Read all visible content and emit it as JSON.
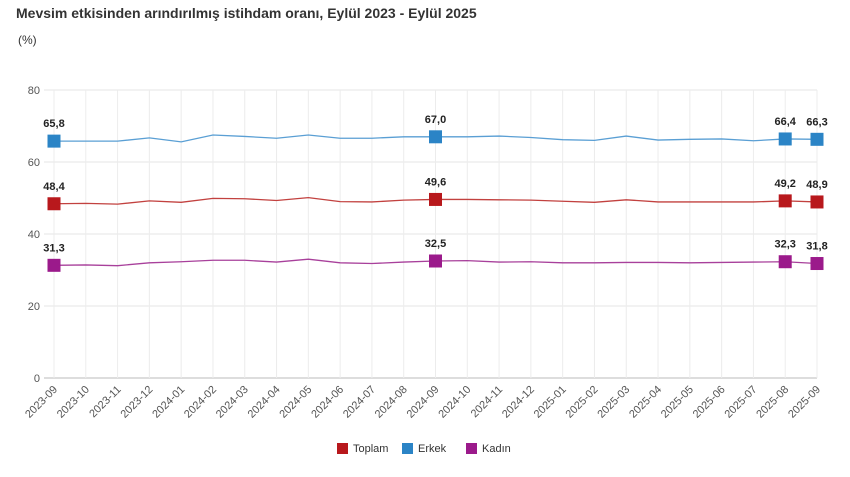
{
  "chart_data": {
    "type": "line",
    "title": "Mevsim etkisinden arındırılmış istihdam oranı, Eylül 2023 - Eylül 2025",
    "ylabel": "(%)",
    "xlabel": "",
    "ylim": [
      0,
      80
    ],
    "yticks": [
      0,
      20,
      40,
      60,
      80
    ],
    "grid": true,
    "legend_position": "bottom-center",
    "x": [
      "2023-09",
      "2023-10",
      "2023-11",
      "2023-12",
      "2024-01",
      "2024-02",
      "2024-03",
      "2024-04",
      "2024-05",
      "2024-06",
      "2024-07",
      "2024-08",
      "2024-09",
      "2024-10",
      "2024-11",
      "2024-12",
      "2025-01",
      "2025-02",
      "2025-03",
      "2025-04",
      "2025-05",
      "2025-06",
      "2025-07",
      "2025-08",
      "2025-09"
    ],
    "series": [
      {
        "name": "Toplam",
        "color": "#b8181c",
        "line_color": "#c2413f",
        "values": [
          48.4,
          48.5,
          48.3,
          49.2,
          48.8,
          49.9,
          49.8,
          49.3,
          50.1,
          49.0,
          48.9,
          49.4,
          49.6,
          49.6,
          49.5,
          49.4,
          49.1,
          48.8,
          49.5,
          48.9,
          48.9,
          48.9,
          48.9,
          49.2,
          48.9
        ],
        "labels": {
          "0": "48,4",
          "12": "49,6",
          "23": "49,2",
          "24": "48,9"
        }
      },
      {
        "name": "Erkek",
        "color": "#2b84c6",
        "line_color": "#5a9fd4",
        "values": [
          65.8,
          65.8,
          65.8,
          66.7,
          65.6,
          67.5,
          67.1,
          66.6,
          67.5,
          66.6,
          66.6,
          67.0,
          67.0,
          67.0,
          67.2,
          66.8,
          66.2,
          66.0,
          67.2,
          66.1,
          66.3,
          66.4,
          65.9,
          66.4,
          66.3
        ],
        "labels": {
          "0": "65,8",
          "12": "67,0",
          "23": "66,4",
          "24": "66,3"
        }
      },
      {
        "name": "Kadın",
        "color": "#9b1a8b",
        "line_color": "#a8409b",
        "values": [
          31.3,
          31.4,
          31.2,
          32.0,
          32.3,
          32.7,
          32.7,
          32.2,
          33.0,
          32.0,
          31.8,
          32.2,
          32.5,
          32.6,
          32.2,
          32.3,
          32.0,
          32.0,
          32.1,
          32.1,
          32.0,
          32.1,
          32.2,
          32.3,
          31.8
        ],
        "labels": {
          "0": "31,3",
          "12": "32,5",
          "23": "32,3",
          "24": "31,8"
        }
      }
    ]
  }
}
